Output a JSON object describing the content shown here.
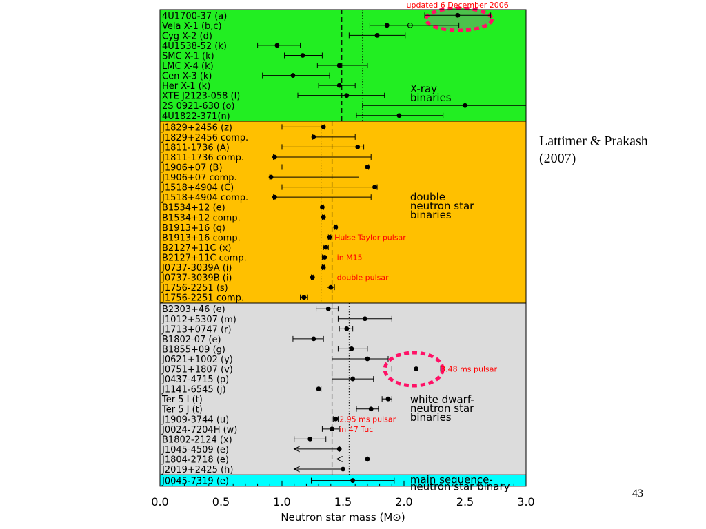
{
  "slide": {
    "citation_line1": "Lattimer & Prakash",
    "citation_line2": "(2007)",
    "page_number": "43"
  },
  "chart_data": {
    "type": "scatter",
    "orientation": "horizontal-errorbars",
    "xlabel": "Neutron star mass (M⊙)",
    "xlim": [
      0.0,
      3.0
    ],
    "xticks": [
      "0.0",
      "0.5",
      "1.0",
      "1.5",
      "2.0",
      "2.5",
      "3.0"
    ],
    "groups": [
      {
        "key": "xray",
        "label_line1": "X-ray",
        "label_line2": "binaries",
        "color": "#22ee22",
        "mean_dashed": 1.49,
        "mean_dotted": 1.66,
        "objects": [
          {
            "name": "4U1700-37 (a)",
            "mass": 2.44,
            "low": 2.17,
            "high": 2.71
          },
          {
            "name": "Vela X-1 (b,c)",
            "mass": 1.86,
            "low": 1.72,
            "high": 2.45,
            "alt_mass": 2.05
          },
          {
            "name": "Cyg X-2 (d)",
            "mass": 1.78,
            "low": 1.55,
            "high": 2.01
          },
          {
            "name": "4U1538-52 (k)",
            "mass": 0.96,
            "low": 0.8,
            "high": 1.15
          },
          {
            "name": "SMC X-1 (k)",
            "mass": 1.17,
            "low": 1.02,
            "high": 1.33
          },
          {
            "name": "LMC X-4 (k)",
            "mass": 1.47,
            "low": 1.29,
            "high": 1.7
          },
          {
            "name": "Cen X-3 (k)",
            "mass": 1.09,
            "low": 0.84,
            "high": 1.39
          },
          {
            "name": "Her X-1 (k)",
            "mass": 1.47,
            "low": 1.3,
            "high": 1.6
          },
          {
            "name": "XTE J2123-058 (l)",
            "mass": 1.53,
            "low": 1.13,
            "high": 1.84
          },
          {
            "name": "2S 0921-630 (o)",
            "mass": 2.5,
            "low": 1.66,
            "high": 3.0,
            "open_right": true
          },
          {
            "name": "4U1822-371(n)",
            "mass": 1.96,
            "low": 1.61,
            "high": 2.32
          }
        ]
      },
      {
        "key": "dns",
        "label_line1": "double",
        "label_line2": "neutron star",
        "label_line3": "binaries",
        "color": "#ffc000",
        "mean_dashed": 1.41,
        "mean_dotted": 1.32,
        "objects": [
          {
            "name": "J1829+2456 (z)",
            "mass": 1.34,
            "low": 1.0,
            "high": 1.35
          },
          {
            "name": "J1829+2456 comp.",
            "mass": 1.26,
            "low": 1.25,
            "high": 1.6
          },
          {
            "name": "J1811-1736 (A)",
            "mass": 1.62,
            "low": 1.0,
            "high": 1.67
          },
          {
            "name": "J1811-1736 comp.",
            "mass": 0.94,
            "low": 0.93,
            "high": 1.73
          },
          {
            "name": "J1906+07 (B)",
            "mass": 1.7,
            "low": 1.0,
            "high": 1.71
          },
          {
            "name": "J1906+07 comp.",
            "mass": 0.91,
            "low": 0.9,
            "high": 1.63
          },
          {
            "name": "J1518+4904 (C)",
            "mass": 1.76,
            "low": 1.0,
            "high": 1.78
          },
          {
            "name": "J1518+4904 comp.",
            "mass": 0.94,
            "low": 0.93,
            "high": 1.73
          },
          {
            "name": "B1534+12 (e)",
            "mass": 1.33,
            "low": 1.32,
            "high": 1.34
          },
          {
            "name": "B1534+12 comp.",
            "mass": 1.34,
            "low": 1.33,
            "high": 1.35
          },
          {
            "name": "B1913+16 (q)",
            "mass": 1.44,
            "low": 1.43,
            "high": 1.45
          },
          {
            "name": "B1913+16 comp.",
            "mass": 1.39,
            "low": 1.38,
            "high": 1.4
          },
          {
            "name": "B2127+11C (x)",
            "mass": 1.36,
            "low": 1.34,
            "high": 1.38
          },
          {
            "name": "B2127+11C comp.",
            "mass": 1.35,
            "low": 1.33,
            "high": 1.37
          },
          {
            "name": "J0737-3039A (i)",
            "mass": 1.34,
            "low": 1.33,
            "high": 1.35
          },
          {
            "name": "J0737-3039B (i)",
            "mass": 1.25,
            "low": 1.24,
            "high": 1.26
          },
          {
            "name": "J1756-2251 (s)",
            "mass": 1.4,
            "low": 1.37,
            "high": 1.43
          },
          {
            "name": "J1756-2251 comp.",
            "mass": 1.18,
            "low": 1.15,
            "high": 1.21
          }
        ]
      },
      {
        "key": "wd",
        "label_line1": "white dwarf-",
        "label_line2": "neutron star",
        "label_line3": "binaries",
        "color": "#dcdcdc",
        "mean_dashed": 1.41,
        "mean_dotted": 1.55,
        "objects": [
          {
            "name": "B2303+46 (e)",
            "mass": 1.38,
            "low": 1.28,
            "high": 1.46
          },
          {
            "name": "J1012+5307 (m)",
            "mass": 1.68,
            "low": 1.46,
            "high": 1.9
          },
          {
            "name": "J1713+0747 (r)",
            "mass": 1.53,
            "low": 1.47,
            "high": 1.58
          },
          {
            "name": "B1802-07 (e)",
            "mass": 1.26,
            "low": 1.09,
            "high": 1.34
          },
          {
            "name": "B1855+09 (g)",
            "mass": 1.57,
            "low": 1.46,
            "high": 1.7
          },
          {
            "name": "J0621+1002 (y)",
            "mass": 1.7,
            "low": 1.41,
            "high": 1.87
          },
          {
            "name": "J0751+1807 (v)",
            "mass": 2.1,
            "low": 1.9,
            "high": 2.3
          },
          {
            "name": "J0437-4715 (p)",
            "mass": 1.58,
            "low": 1.41,
            "high": 1.75
          },
          {
            "name": "J1141-6545 (j)",
            "mass": 1.3,
            "low": 1.28,
            "high": 1.32
          },
          {
            "name": "Ter 5 I (t)",
            "mass": 1.87,
            "low": 1.82,
            "high": 1.9
          },
          {
            "name": "Ter 5 J (t)",
            "mass": 1.73,
            "low": 1.61,
            "high": 1.79
          },
          {
            "name": "J1909-3744 (u)",
            "mass": 1.44,
            "low": 1.42,
            "high": 1.46
          },
          {
            "name": "J0024-7204H (w)",
            "mass": 1.41,
            "low": 1.33,
            "high": 1.47
          },
          {
            "name": "B1802-2124 (x)",
            "mass": 1.23,
            "low": 1.1,
            "high": 1.36
          },
          {
            "name": "J1045-4509 (e)",
            "mass": 1.47,
            "low": 1.1,
            "high": 1.47,
            "open_left": true
          },
          {
            "name": "J1804-2718 (e)",
            "mass": 1.7,
            "low": 1.45,
            "high": 1.7,
            "open_left": true
          },
          {
            "name": "J2019+2425 (h)",
            "mass": 1.5,
            "low": 1.1,
            "high": 1.5,
            "open_left": true
          }
        ]
      },
      {
        "key": "ms",
        "label_line1": "main sequence-",
        "label_line2": "neutron star binary",
        "color": "#00ffff",
        "objects": [
          {
            "name": "J0045-7319 (e)",
            "mass": 1.58,
            "low": 1.24,
            "high": 1.92
          }
        ]
      }
    ],
    "annotations": [
      {
        "text": "updated 6 December 2006",
        "row": 0,
        "x": 2.02,
        "place": "header"
      },
      {
        "text": "Hulse-Taylor pulsar",
        "row": 30,
        "x": 1.43
      },
      {
        "text": "in M15",
        "row": 33,
        "x": 1.45
      },
      {
        "text": "double pulsar",
        "row": 35,
        "x": 1.45
      },
      {
        "text": "3.48 ms pulsar",
        "row": 35,
        "x": 2.3,
        "group_row": 6,
        "group": "wd"
      },
      {
        "text": "2.95 ms pulsar",
        "group": "wd",
        "group_row": 11,
        "x": 1.47
      },
      {
        "text": "in 47 Tuc",
        "group": "wd",
        "group_row": 12,
        "x": 1.47
      }
    ],
    "highlight_color": "#ff1166",
    "annotation_color": "#ff0000"
  }
}
